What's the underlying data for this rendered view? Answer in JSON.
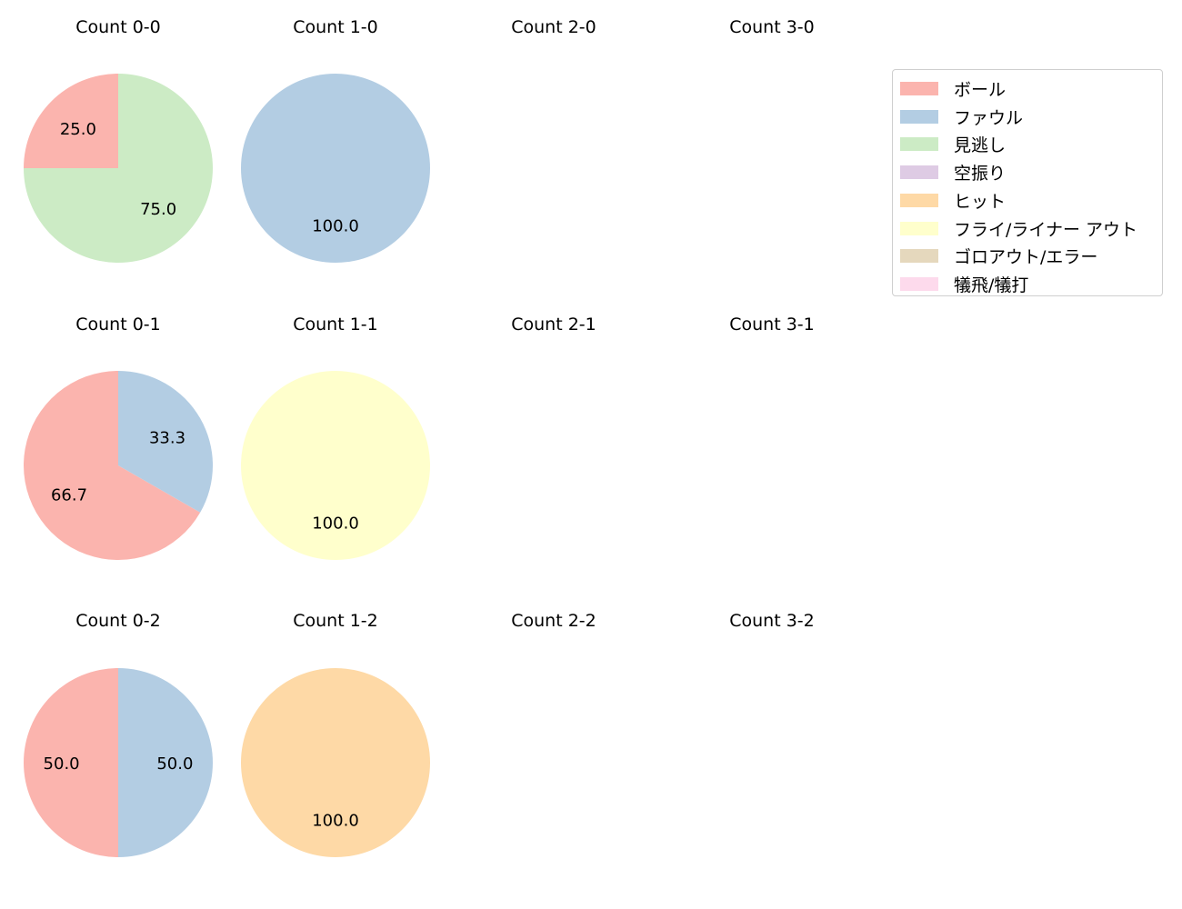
{
  "chart_data": {
    "type": "pie",
    "legend": {
      "placement": "top-right",
      "entries": [
        {
          "label": "ボール",
          "color": "#fbb4ae"
        },
        {
          "label": "ファウル",
          "color": "#b3cde3"
        },
        {
          "label": "見逃し",
          "color": "#ccebc5"
        },
        {
          "label": "空振り",
          "color": "#decbe4"
        },
        {
          "label": "ヒット",
          "color": "#fed9a6"
        },
        {
          "label": "フライ/ライナー アウト",
          "color": "#ffffcc"
        },
        {
          "label": "ゴロアウト/エラー",
          "color": "#e5d8bd"
        },
        {
          "label": "犠飛/犠打",
          "color": "#fddaec"
        }
      ]
    },
    "panels": [
      {
        "title": "Count 0-0",
        "slices": [
          {
            "label": "ボール",
            "value": 25.0,
            "text": "25.0"
          },
          {
            "label": "見逃し",
            "value": 75.0,
            "text": "75.0"
          }
        ]
      },
      {
        "title": "Count 1-0",
        "slices": [
          {
            "label": "ファウル",
            "value": 100.0,
            "text": "100.0"
          }
        ]
      },
      {
        "title": "Count 2-0",
        "slices": []
      },
      {
        "title": "Count 3-0",
        "slices": []
      },
      {
        "title": "Count 0-1",
        "slices": [
          {
            "label": "ボール",
            "value": 66.7,
            "text": "66.7"
          },
          {
            "label": "ファウル",
            "value": 33.3,
            "text": "33.3"
          }
        ]
      },
      {
        "title": "Count 1-1",
        "slices": [
          {
            "label": "フライ/ライナー アウト",
            "value": 100.0,
            "text": "100.0"
          }
        ]
      },
      {
        "title": "Count 2-1",
        "slices": []
      },
      {
        "title": "Count 3-1",
        "slices": []
      },
      {
        "title": "Count 0-2",
        "slices": [
          {
            "label": "ボール",
            "value": 50.0,
            "text": "50.0"
          },
          {
            "label": "ファウル",
            "value": 50.0,
            "text": "50.0"
          }
        ]
      },
      {
        "title": "Count 1-2",
        "slices": [
          {
            "label": "ヒット",
            "value": 100.0,
            "text": "100.0"
          }
        ]
      },
      {
        "title": "Count 2-2",
        "slices": []
      },
      {
        "title": "Count 3-2",
        "slices": []
      }
    ]
  }
}
